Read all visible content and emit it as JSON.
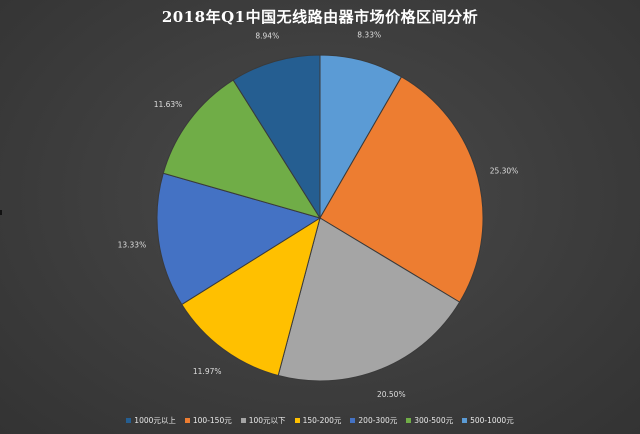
{
  "chart_data": {
    "type": "pie",
    "title": "2018年Q1中国无线路由器市场价格区间分析",
    "slices": [
      {
        "label": "500-1000元",
        "value": 8.33,
        "value_label": "8.33%",
        "color": "#5b9bd5"
      },
      {
        "label": "100-150元",
        "value": 25.3,
        "value_label": "25.30%",
        "color": "#ed7d31"
      },
      {
        "label": "100元以下",
        "value": 20.5,
        "value_label": "20.50%",
        "color": "#a5a5a5"
      },
      {
        "label": "150-200元",
        "value": 11.97,
        "value_label": "11.97%",
        "color": "#ffc000"
      },
      {
        "label": "200-300元",
        "value": 13.33,
        "value_label": "13.33%",
        "color": "#4472c4"
      },
      {
        "label": "300-500元",
        "value": 11.63,
        "value_label": "11.63%",
        "color": "#70ad47"
      },
      {
        "label": "1000元以上",
        "value": 8.94,
        "value_label": "8.94%",
        "color": "#255e91"
      }
    ],
    "legend": {
      "placement": "bottom",
      "items": [
        {
          "label": "1000元以上",
          "color": "#255e91"
        },
        {
          "label": "100-150元",
          "color": "#ed7d31"
        },
        {
          "label": "100元以下",
          "color": "#a5a5a5"
        },
        {
          "label": "150-200元",
          "color": "#ffc000"
        },
        {
          "label": "200-300元",
          "color": "#4472c4"
        },
        {
          "label": "300-500元",
          "color": "#70ad47"
        },
        {
          "label": "500-1000元",
          "color": "#5b9bd5"
        }
      ]
    }
  }
}
